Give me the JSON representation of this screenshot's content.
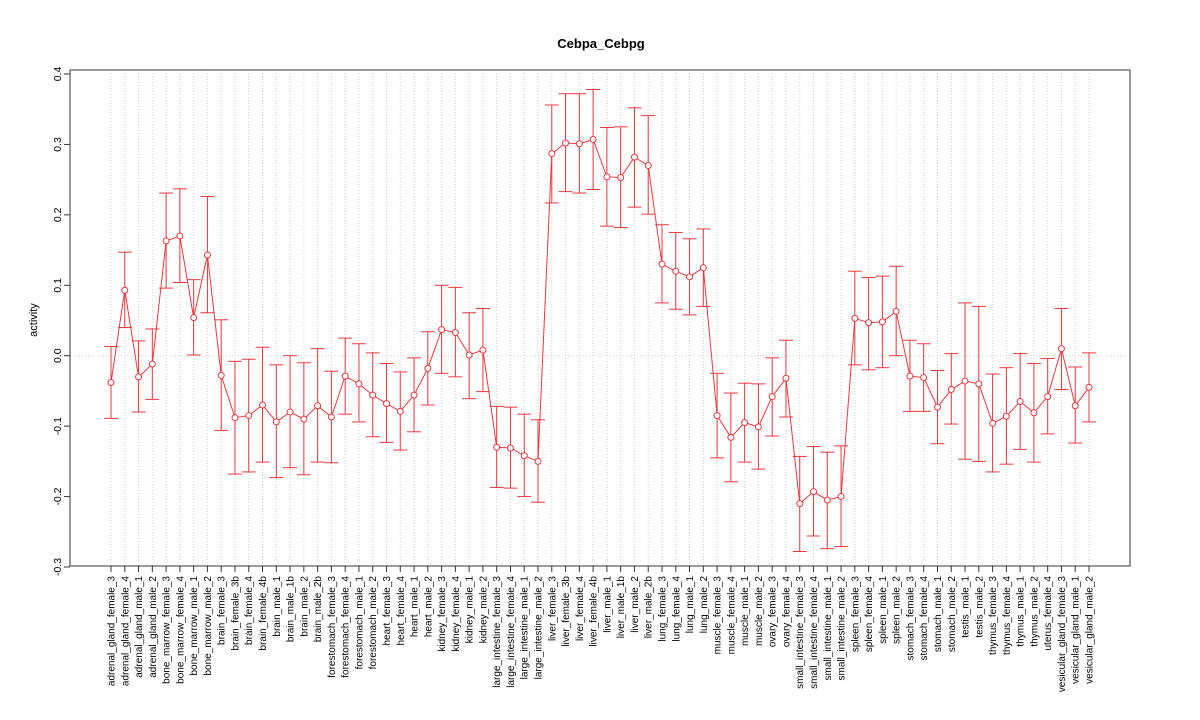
{
  "chart_data": {
    "type": "line",
    "title": "Cebpa_Cebpg",
    "xlabel": "",
    "ylabel": "activity",
    "ylim": [
      -0.3,
      0.4
    ],
    "yticks": [
      "-0.3",
      "-0.2",
      "-0.1",
      "0.0",
      "0.1",
      "0.2",
      "0.3",
      "0.4"
    ],
    "color": "#E8383D",
    "grid": "vertical dotted lines per category, horizontal dotted line at 0",
    "categories": [
      "adrenal_gland_female_3",
      "adrenal_gland_female_4",
      "adrenal_gland_male_1",
      "adrenal_gland_male_2",
      "bone_marrow_female_3",
      "bone_marrow_female_4",
      "bone_marrow_male_1",
      "bone_marrow_male_2",
      "brain_female_3",
      "brain_female_3b",
      "brain_female_4",
      "brain_female_4b",
      "brain_male_1",
      "brain_male_1b",
      "brain_male_2",
      "brain_male_2b",
      "forestomach_female_3",
      "forestomach_female_4",
      "forestomach_male_1",
      "forestomach_male_2",
      "heart_female_3",
      "heart_female_4",
      "heart_male_1",
      "heart_male_2",
      "kidney_female_3",
      "kidney_female_4",
      "kidney_male_1",
      "kidney_male_2",
      "large_intestine_female_3",
      "large_intestine_female_4",
      "large_intestine_male_1",
      "large_intestine_male_2",
      "liver_female_3",
      "liver_female_3b",
      "liver_female_4",
      "liver_female_4b",
      "liver_male_1",
      "liver_male_1b",
      "liver_male_2",
      "liver_male_2b",
      "lung_female_3",
      "lung_female_4",
      "lung_male_1",
      "lung_male_2",
      "muscle_female_3",
      "muscle_female_4",
      "muscle_male_1",
      "muscle_male_2",
      "ovary_female_3",
      "ovary_female_4",
      "small_intestine_female_3",
      "small_intestine_female_4",
      "small_intestine_male_1",
      "small_intestine_male_2",
      "spleen_female_3",
      "spleen_female_4",
      "spleen_male_1",
      "spleen_male_2",
      "stomach_female_3",
      "stomach_female_4",
      "stomach_male_1",
      "stomach_male_2",
      "testis_male_1",
      "testis_male_2",
      "thymus_female_3",
      "thymus_female_4",
      "thymus_male_1",
      "thymus_male_2",
      "uterus_female_4",
      "vesicular_gland_female_3",
      "vesicular_gland_male_1",
      "vesicular_gland_male_2"
    ],
    "values": [
      -0.038,
      0.093,
      -0.03,
      -0.012,
      0.163,
      0.17,
      0.054,
      0.143,
      -0.028,
      -0.088,
      -0.085,
      -0.07,
      -0.094,
      -0.08,
      -0.09,
      -0.071,
      -0.087,
      -0.029,
      -0.04,
      -0.056,
      -0.068,
      -0.079,
      -0.056,
      -0.018,
      0.037,
      0.033,
      0.001,
      0.008,
      -0.13,
      -0.131,
      -0.142,
      -0.15,
      0.287,
      0.302,
      0.301,
      0.307,
      0.254,
      0.253,
      0.282,
      0.27,
      0.13,
      0.12,
      0.112,
      0.125,
      -0.085,
      -0.116,
      -0.095,
      -0.101,
      -0.058,
      -0.032,
      -0.21,
      -0.193,
      -0.205,
      -0.2,
      0.053,
      0.047,
      0.048,
      0.063,
      -0.029,
      -0.031,
      -0.073,
      -0.048,
      -0.036,
      -0.04,
      -0.096,
      -0.086,
      -0.065,
      -0.081,
      -0.058,
      0.01,
      -0.071,
      -0.045
    ],
    "lower": [
      -0.089,
      0.04,
      -0.08,
      -0.062,
      0.096,
      0.104,
      0.001,
      0.061,
      -0.106,
      -0.168,
      -0.165,
      -0.151,
      -0.173,
      -0.159,
      -0.169,
      -0.151,
      -0.152,
      -0.083,
      -0.094,
      -0.115,
      -0.123,
      -0.134,
      -0.108,
      -0.07,
      -0.025,
      -0.03,
      -0.061,
      -0.051,
      -0.187,
      -0.188,
      -0.2,
      -0.208,
      0.217,
      0.233,
      0.231,
      0.236,
      0.184,
      0.182,
      0.211,
      0.201,
      0.075,
      0.066,
      0.058,
      0.07,
      -0.145,
      -0.179,
      -0.151,
      -0.161,
      -0.114,
      -0.087,
      -0.278,
      -0.256,
      -0.274,
      -0.271,
      -0.013,
      -0.02,
      -0.017,
      0.0,
      -0.079,
      -0.079,
      -0.125,
      -0.097,
      -0.147,
      -0.15,
      -0.165,
      -0.154,
      -0.133,
      -0.151,
      -0.111,
      -0.048,
      -0.124,
      -0.094
    ],
    "upper": [
      0.013,
      0.147,
      0.021,
      0.038,
      0.231,
      0.237,
      0.108,
      0.226,
      0.051,
      -0.008,
      -0.005,
      0.012,
      -0.013,
      0.0,
      -0.01,
      0.01,
      -0.022,
      0.025,
      0.017,
      0.004,
      -0.011,
      -0.023,
      -0.003,
      0.034,
      0.1,
      0.097,
      0.061,
      0.067,
      -0.072,
      -0.073,
      -0.083,
      -0.091,
      0.356,
      0.372,
      0.372,
      0.378,
      0.324,
      0.325,
      0.352,
      0.341,
      0.186,
      0.175,
      0.166,
      0.18,
      -0.025,
      -0.053,
      -0.039,
      -0.04,
      -0.003,
      0.022,
      -0.143,
      -0.129,
      -0.137,
      -0.128,
      0.12,
      0.111,
      0.113,
      0.127,
      0.022,
      0.017,
      -0.021,
      0.003,
      0.075,
      0.07,
      -0.026,
      -0.017,
      0.003,
      -0.011,
      -0.004,
      0.067,
      -0.016,
      0.004
    ]
  }
}
